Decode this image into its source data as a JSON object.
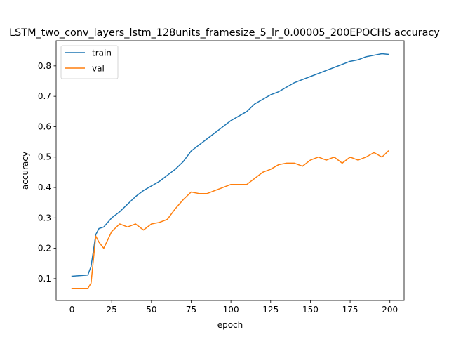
{
  "chart_data": {
    "type": "line",
    "title": "LSTM_two_conv_layers_lstm_128units_framesize_5_lr_0.00005_200EPOCHS accuracy",
    "xlabel": "epoch",
    "ylabel": "accuracy",
    "xlim": [
      -9.95,
      208.95
    ],
    "ylim": [
      0.0282,
      0.8828
    ],
    "x_ticks": [
      0,
      25,
      50,
      75,
      100,
      125,
      150,
      175,
      200
    ],
    "y_ticks": [
      0.1,
      0.2,
      0.3,
      0.4,
      0.5,
      0.6,
      0.7,
      0.8
    ],
    "legend_position": "top-left",
    "x": [
      0,
      5,
      10,
      12,
      15,
      17,
      20,
      25,
      30,
      35,
      40,
      45,
      50,
      55,
      60,
      65,
      70,
      75,
      80,
      85,
      90,
      95,
      100,
      105,
      110,
      115,
      120,
      125,
      130,
      135,
      140,
      145,
      150,
      155,
      160,
      165,
      170,
      175,
      180,
      185,
      190,
      195,
      199
    ],
    "series": [
      {
        "name": "train",
        "color": "#1f77b4",
        "values": [
          0.108,
          0.11,
          0.112,
          0.14,
          0.245,
          0.265,
          0.27,
          0.3,
          0.32,
          0.345,
          0.37,
          0.39,
          0.405,
          0.42,
          0.44,
          0.46,
          0.485,
          0.52,
          0.54,
          0.56,
          0.58,
          0.6,
          0.62,
          0.635,
          0.65,
          0.675,
          0.69,
          0.705,
          0.715,
          0.73,
          0.745,
          0.755,
          0.765,
          0.775,
          0.785,
          0.795,
          0.805,
          0.815,
          0.82,
          0.83,
          0.835,
          0.84,
          0.838
        ]
      },
      {
        "name": "val",
        "color": "#ff7f0e",
        "values": [
          0.068,
          0.068,
          0.068,
          0.085,
          0.24,
          0.22,
          0.2,
          0.255,
          0.28,
          0.27,
          0.28,
          0.26,
          0.28,
          0.285,
          0.295,
          0.33,
          0.36,
          0.385,
          0.38,
          0.38,
          0.39,
          0.4,
          0.41,
          0.41,
          0.41,
          0.43,
          0.45,
          0.46,
          0.475,
          0.48,
          0.48,
          0.47,
          0.49,
          0.5,
          0.49,
          0.5,
          0.48,
          0.5,
          0.49,
          0.5,
          0.515,
          0.5,
          0.52
        ]
      }
    ]
  }
}
